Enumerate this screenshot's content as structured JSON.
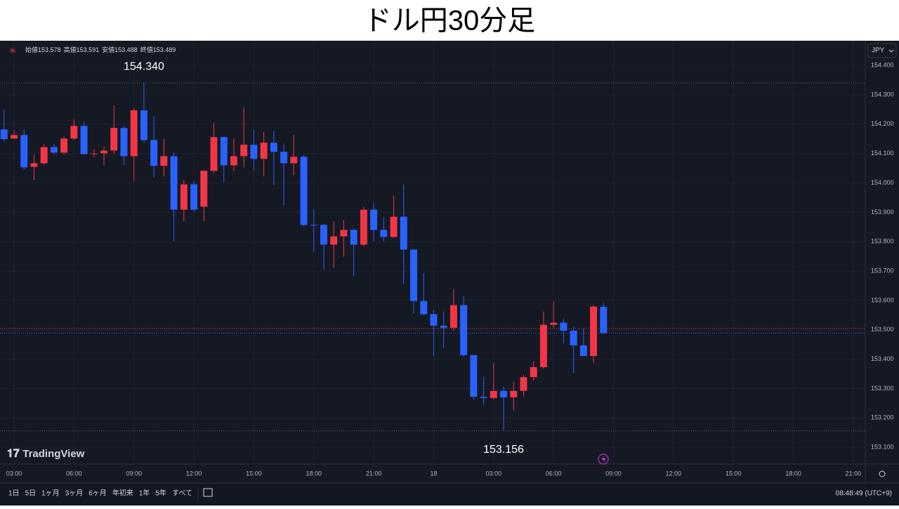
{
  "title": "ドル円30分足",
  "header": {
    "labels": [
      "始値",
      "高値",
      "安値",
      "終値"
    ]
  },
  "logo": "TradingView",
  "currency": "JPY",
  "toolbar": {
    "ranges": [
      "1日",
      "5日",
      "1ヶ月",
      "3ヶ月",
      "6ヶ月",
      "年初来",
      "1年",
      "5年",
      "すべて"
    ],
    "clock": "08:48:49 (UTC+9)"
  },
  "chart_data": {
    "type": "candlestick",
    "up_color": "#f23645",
    "down_color": "#2962ff",
    "x": [
      2.5,
      3,
      3.5,
      4,
      4.5,
      5,
      5.5,
      6,
      6.5,
      7,
      7.5,
      8,
      8.5,
      9,
      9.5,
      10,
      10.5,
      11,
      11.5,
      12,
      12.5,
      13,
      13.5,
      14,
      14.5,
      15,
      15.5,
      16,
      16.5,
      17,
      17.5,
      18,
      18.5,
      19,
      19.5,
      20,
      20.5,
      21,
      21.5,
      22,
      22.5,
      23,
      23.5,
      24,
      24.5,
      25,
      25.5,
      26,
      26.5,
      27,
      27.5,
      28,
      28.5,
      29,
      29.5,
      30,
      30.5,
      31,
      31.5,
      32,
      32.5
    ],
    "ohlc": [
      [
        154.182,
        154.249,
        154.141,
        154.149
      ],
      [
        154.151,
        154.18,
        154.149,
        154.163
      ],
      [
        154.163,
        154.182,
        154.046,
        154.053
      ],
      [
        154.055,
        154.096,
        154.01,
        154.067
      ],
      [
        154.067,
        154.132,
        154.062,
        154.122
      ],
      [
        154.122,
        154.132,
        154.098,
        154.103
      ],
      [
        154.103,
        154.158,
        154.096,
        154.151
      ],
      [
        154.151,
        154.216,
        154.146,
        154.194
      ],
      [
        154.194,
        154.208,
        154.096,
        154.098
      ],
      [
        154.098,
        154.115,
        154.089,
        154.1
      ],
      [
        154.101,
        154.125,
        154.062,
        154.11
      ],
      [
        154.11,
        154.264,
        154.098,
        154.187
      ],
      [
        154.187,
        154.194,
        154.06,
        154.091
      ],
      [
        154.091,
        154.256,
        154.007,
        154.247
      ],
      [
        154.247,
        154.34,
        154.137,
        154.146
      ],
      [
        154.146,
        154.228,
        154.019,
        154.058
      ],
      [
        154.058,
        154.151,
        154.022,
        154.091
      ],
      [
        154.091,
        154.103,
        153.801,
        153.909
      ],
      [
        153.909,
        154.01,
        153.869,
        153.995
      ],
      [
        153.995,
        154.007,
        153.9,
        153.909
      ],
      [
        153.919,
        154.043,
        153.869,
        154.041
      ],
      [
        154.041,
        154.204,
        154.034,
        154.156
      ],
      [
        154.156,
        154.158,
        154.003,
        154.06
      ],
      [
        154.06,
        154.151,
        154.039,
        154.091
      ],
      [
        154.091,
        154.256,
        154.053,
        154.13
      ],
      [
        154.13,
        154.18,
        154.043,
        154.082
      ],
      [
        154.082,
        154.173,
        154.022,
        154.137
      ],
      [
        154.137,
        154.178,
        153.993,
        154.106
      ],
      [
        154.106,
        154.134,
        153.924,
        154.067
      ],
      [
        154.067,
        154.163,
        154.026,
        154.089
      ],
      [
        154.089,
        154.096,
        153.852,
        153.857
      ],
      [
        153.857,
        153.909,
        153.766,
        153.856
      ],
      [
        153.857,
        153.861,
        153.706,
        153.79
      ],
      [
        153.79,
        153.869,
        153.711,
        153.818
      ],
      [
        153.818,
        153.873,
        153.749,
        153.84
      ],
      [
        153.84,
        153.845,
        153.682,
        153.79
      ],
      [
        153.79,
        153.919,
        153.785,
        153.909
      ],
      [
        153.909,
        153.931,
        153.801,
        153.84
      ],
      [
        153.84,
        153.885,
        153.801,
        153.816
      ],
      [
        153.816,
        153.957,
        153.813,
        153.885
      ],
      [
        153.885,
        153.995,
        153.655,
        153.773
      ],
      [
        153.773,
        153.773,
        153.555,
        153.598
      ],
      [
        153.598,
        153.694,
        153.55,
        153.553
      ],
      [
        153.553,
        153.567,
        153.411,
        153.514
      ],
      [
        153.514,
        153.562,
        153.438,
        153.507
      ],
      [
        153.507,
        153.639,
        153.497,
        153.584
      ],
      [
        153.584,
        153.615,
        153.409,
        153.414
      ],
      [
        153.414,
        153.416,
        153.263,
        153.272
      ],
      [
        153.272,
        153.339,
        153.244,
        153.268
      ],
      [
        153.268,
        153.387,
        153.263,
        153.292
      ],
      [
        153.292,
        153.306,
        153.156,
        153.27
      ],
      [
        153.27,
        153.323,
        153.225,
        153.292
      ],
      [
        153.292,
        153.347,
        153.273,
        153.339
      ],
      [
        153.339,
        153.392,
        153.327,
        153.373
      ],
      [
        153.373,
        153.562,
        153.368,
        153.517
      ],
      [
        153.517,
        153.596,
        153.507,
        153.524
      ],
      [
        153.524,
        153.538,
        153.454,
        153.497
      ],
      [
        153.497,
        153.509,
        153.354,
        153.447
      ],
      [
        153.447,
        153.505,
        153.411,
        153.411
      ],
      [
        153.411,
        153.584,
        153.387,
        153.579
      ],
      [
        153.578,
        153.591,
        153.488,
        153.489
      ]
    ],
    "annotations": {
      "high": "154.340",
      "low": "153.156"
    },
    "reference_line": {
      "value": 153.505,
      "color": "#f23645"
    },
    "xlim": [
      2.297,
      45.6
    ],
    "xticks": [
      {
        "value": 3,
        "label": "03:00"
      },
      {
        "value": 6,
        "label": "06:00"
      },
      {
        "value": 9,
        "label": "09:00"
      },
      {
        "value": 12,
        "label": "12:00"
      },
      {
        "value": 15,
        "label": "15:00"
      },
      {
        "value": 18,
        "label": "18:00"
      },
      {
        "value": 21,
        "label": "21:00"
      },
      {
        "value": 24,
        "label": "18"
      },
      {
        "value": 27,
        "label": "03:00"
      },
      {
        "value": 30,
        "label": "06:00"
      },
      {
        "value": 33,
        "label": "09:00"
      },
      {
        "value": 36,
        "label": "12:00"
      },
      {
        "value": 39,
        "label": "15:00"
      },
      {
        "value": 42,
        "label": "18:00"
      },
      {
        "value": 45,
        "label": "21:00"
      }
    ],
    "ylim": [
      153.043,
      154.484
    ],
    "yticks": [
      {
        "value": 153.1,
        "label": "153.100"
      },
      {
        "value": 153.2,
        "label": "153.200"
      },
      {
        "value": 153.3,
        "label": "153.300"
      },
      {
        "value": 153.4,
        "label": "153.400"
      },
      {
        "value": 153.5,
        "label": "153.500"
      },
      {
        "value": 153.6,
        "label": "153.600"
      },
      {
        "value": 153.7,
        "label": "153.700"
      },
      {
        "value": 153.8,
        "label": "153.800"
      },
      {
        "value": 153.9,
        "label": "153.900"
      },
      {
        "value": 154,
        "label": "154.000"
      },
      {
        "value": 154.1,
        "label": "154.100"
      },
      {
        "value": 154.2,
        "label": "154.200"
      },
      {
        "value": 154.3,
        "label": "154.300"
      },
      {
        "value": 154.4,
        "label": "154.400"
      }
    ],
    "grid": true
  }
}
